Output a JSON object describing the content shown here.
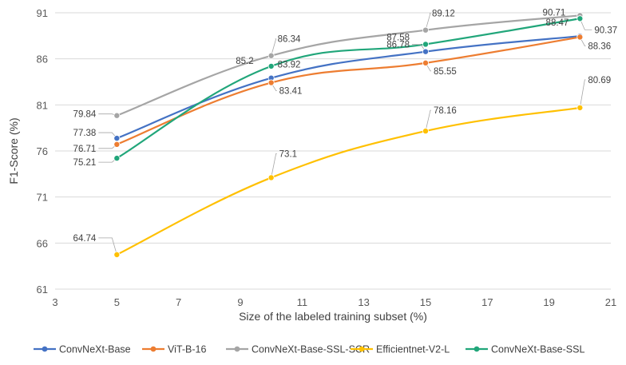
{
  "chart_data": {
    "type": "line",
    "title": "",
    "xlabel": "Size of the labeled training subset (%)",
    "ylabel": "F1-Score (%)",
    "xlim": [
      3,
      21
    ],
    "ylim": [
      61,
      91
    ],
    "x_ticks": [
      3,
      5,
      7,
      9,
      11,
      13,
      15,
      17,
      19,
      21
    ],
    "y_ticks": [
      61,
      66,
      71,
      76,
      81,
      86,
      91
    ],
    "grid": "horizontal",
    "legend_position": "bottom",
    "x": [
      5,
      10,
      15,
      20
    ],
    "series": [
      {
        "name": "ConvNeXt-Base",
        "color": "#4472C4",
        "values": [
          77.38,
          83.92,
          86.78,
          88.47
        ]
      },
      {
        "name": "ViT-B-16",
        "color": "#ED7D31",
        "values": [
          76.71,
          83.41,
          85.55,
          88.36
        ]
      },
      {
        "name": "ConvNeXt-Base-SSL-SCR",
        "color": "#A5A5A5",
        "values": [
          79.84,
          86.34,
          89.12,
          90.71
        ]
      },
      {
        "name": "Efficientnet-V2-L",
        "color": "#FFC000",
        "values": [
          64.74,
          73.1,
          78.16,
          80.69
        ]
      },
      {
        "name": "ConvNeXt-Base-SSL",
        "color": "#21A67A",
        "values": [
          75.21,
          85.2,
          87.58,
          90.37
        ]
      }
    ]
  }
}
